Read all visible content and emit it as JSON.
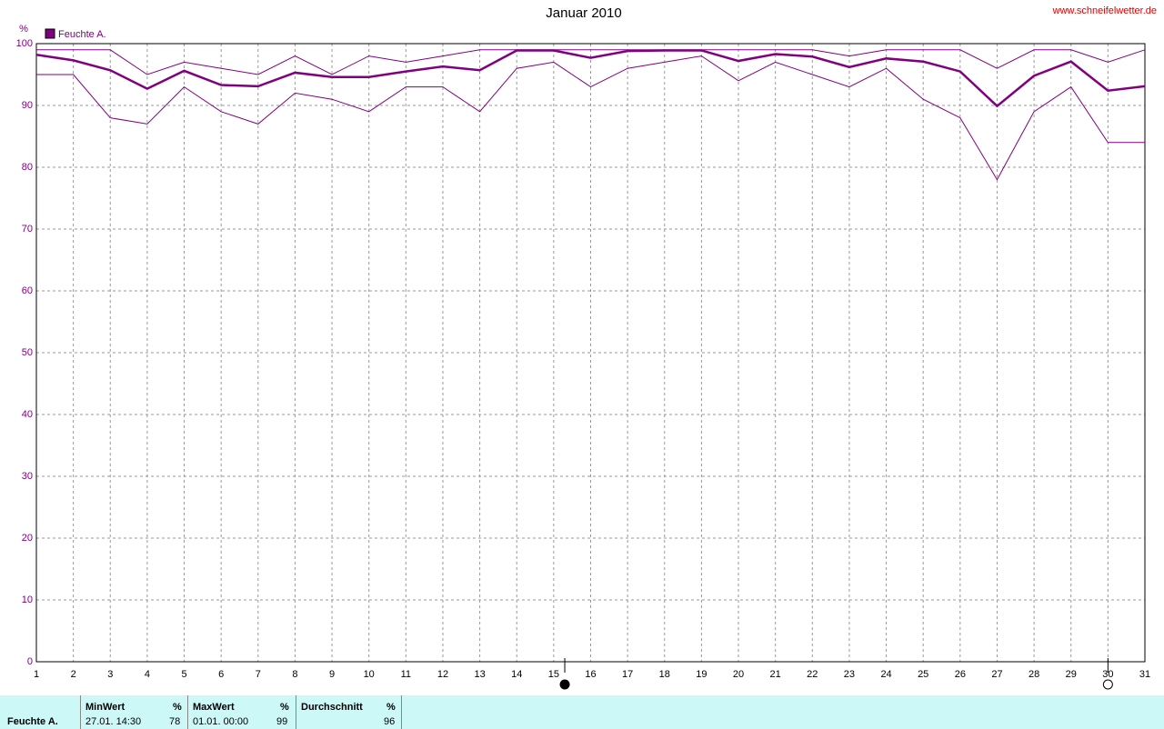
{
  "chart_data": {
    "type": "line",
    "title": "Januar 2010",
    "source": "www.schneifelwetter.de",
    "y_unit": "%",
    "x": [
      1,
      2,
      3,
      4,
      5,
      6,
      7,
      8,
      9,
      10,
      11,
      12,
      13,
      14,
      15,
      16,
      17,
      18,
      19,
      20,
      21,
      22,
      23,
      24,
      25,
      26,
      27,
      28,
      29,
      30,
      31
    ],
    "series": [
      {
        "name": "Feuchte A.",
        "color": "#800080",
        "values": [
          98.2,
          97.3,
          95.7,
          92.7,
          95.6,
          93.3,
          93.1,
          95.3,
          94.6,
          94.6,
          95.5,
          96.3,
          95.7,
          98.9,
          98.9,
          97.7,
          98.8,
          98.9,
          98.9,
          97.2,
          98.3,
          97.9,
          96.2,
          97.6,
          97.1,
          95.5,
          89.9,
          94.8,
          97.1,
          92.4,
          93.1
        ],
        "max_values": [
          99,
          99,
          99,
          95,
          97,
          96,
          95,
          98,
          95,
          98,
          97,
          98,
          99,
          99,
          99,
          99,
          99,
          99,
          99,
          99,
          99,
          99,
          98,
          99,
          99,
          99,
          96,
          99,
          99,
          97,
          99
        ],
        "min_values": [
          95,
          95,
          88,
          87,
          93,
          89,
          87,
          92,
          91,
          89,
          93,
          93,
          89,
          96,
          97,
          93,
          96,
          97,
          98,
          94,
          97,
          95,
          93,
          96,
          91,
          88,
          78,
          89,
          93,
          84,
          84
        ]
      }
    ],
    "xlim": [
      1,
      31
    ],
    "xticks": [
      1,
      2,
      3,
      4,
      5,
      6,
      7,
      8,
      9,
      10,
      11,
      12,
      13,
      14,
      15,
      16,
      17,
      18,
      19,
      20,
      21,
      22,
      23,
      24,
      25,
      26,
      27,
      28,
      29,
      30,
      31
    ],
    "ylim": [
      0,
      100
    ],
    "yticks": [
      0,
      10,
      20,
      30,
      40,
      50,
      60,
      70,
      80,
      90,
      100
    ],
    "grid": true,
    "moon_phases": [
      {
        "x": 15.3,
        "filled": true
      },
      {
        "x": 30.0,
        "filled": false
      }
    ]
  },
  "summary": {
    "row_label": "Feuchte A.",
    "min": {
      "header": "MinWert",
      "unit": "%",
      "time": "27.01.  14:30",
      "value": "78"
    },
    "max": {
      "header": "MaxWert",
      "unit": "%",
      "time": "01.01.  00:00",
      "value": "99"
    },
    "avg": {
      "header": "Durchschnitt",
      "unit": "%",
      "value": "96"
    }
  }
}
